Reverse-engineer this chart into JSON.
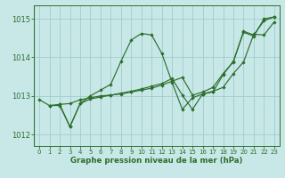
{
  "title": "Graphe pression niveau de la mer (hPa)",
  "background_color": "#c8e8e8",
  "grid_color": "#a0cccc",
  "line_color": "#2d6e2d",
  "marker_color": "#2d6e2d",
  "xlim": [
    -0.5,
    23.5
  ],
  "ylim": [
    1011.7,
    1015.35
  ],
  "yticks": [
    1012,
    1013,
    1014,
    1015
  ],
  "xticks": [
    0,
    1,
    2,
    3,
    4,
    5,
    6,
    7,
    8,
    9,
    10,
    11,
    12,
    13,
    14,
    15,
    16,
    17,
    18,
    19,
    20,
    21,
    22,
    23
  ],
  "series": [
    {
      "x": [
        0,
        1,
        2,
        3,
        4,
        5,
        6,
        7,
        8,
        9,
        10,
        11,
        12,
        13,
        14,
        15,
        16,
        17,
        18,
        19,
        20,
        21,
        22,
        23
      ],
      "y": [
        1012.9,
        1012.75,
        1012.75,
        1012.2,
        1012.8,
        1013.0,
        1013.15,
        1013.3,
        1013.9,
        1014.45,
        1014.62,
        1014.58,
        1014.1,
        1013.35,
        1012.65,
        1012.95,
        1013.05,
        1013.1,
        1013.55,
        1013.9,
        1014.65,
        1014.55,
        1015.0,
        1015.05
      ]
    },
    {
      "x": [
        1,
        2,
        3,
        4,
        5,
        6,
        7,
        8,
        9,
        10,
        11,
        12,
        13,
        14,
        15,
        16,
        17,
        18,
        19,
        20,
        21,
        22,
        23
      ],
      "y": [
        1012.75,
        1012.78,
        1012.8,
        1012.9,
        1012.95,
        1013.0,
        1013.02,
        1013.05,
        1013.1,
        1013.15,
        1013.2,
        1013.28,
        1013.38,
        1013.48,
        1013.02,
        1013.1,
        1013.22,
        1013.58,
        1013.88,
        1014.68,
        1014.58,
        1014.95,
        1015.05
      ]
    },
    {
      "x": [
        2,
        3,
        4,
        5,
        6,
        7,
        8,
        9,
        10,
        11,
        12,
        13,
        14,
        15,
        16,
        17,
        18,
        19,
        20,
        21,
        22,
        23
      ],
      "y": [
        1012.78,
        1012.2,
        1012.8,
        1012.92,
        1012.97,
        1013.02,
        1013.07,
        1013.12,
        1013.18,
        1013.25,
        1013.32,
        1013.45,
        1013.02,
        1012.65,
        1013.05,
        1013.12,
        1013.22,
        1013.58,
        1013.88,
        1014.6,
        1014.58,
        1014.92
      ]
    }
  ]
}
